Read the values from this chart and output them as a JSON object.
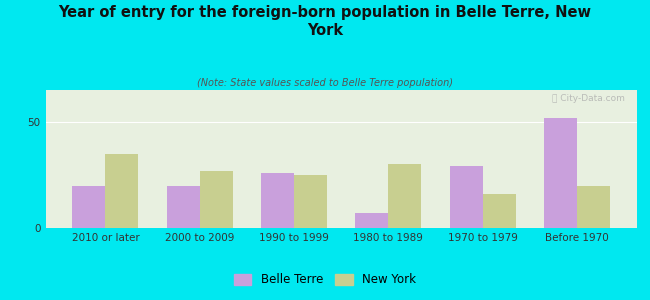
{
  "title": "Year of entry for the foreign-born population in Belle Terre, New\nYork",
  "subtitle": "(Note: State values scaled to Belle Terre population)",
  "categories": [
    "2010 or later",
    "2000 to 2009",
    "1990 to 1999",
    "1980 to 1989",
    "1970 to 1979",
    "Before 1970"
  ],
  "belle_terre": [
    20,
    20,
    26,
    7,
    29,
    52
  ],
  "new_york": [
    35,
    27,
    25,
    30,
    16,
    20
  ],
  "belle_terre_color": "#c9a0dc",
  "new_york_color": "#c8cf90",
  "background_outer": "#00e8f0",
  "background_inner": "#e8f0e0",
  "ylim": [
    0,
    65
  ],
  "yticks": [
    0,
    50
  ],
  "bar_width": 0.35,
  "legend_labels": [
    "Belle Terre",
    "New York"
  ],
  "watermark": "ⓘ City-Data.com",
  "title_fontsize": 10.5,
  "subtitle_fontsize": 7,
  "tick_fontsize": 7.5
}
